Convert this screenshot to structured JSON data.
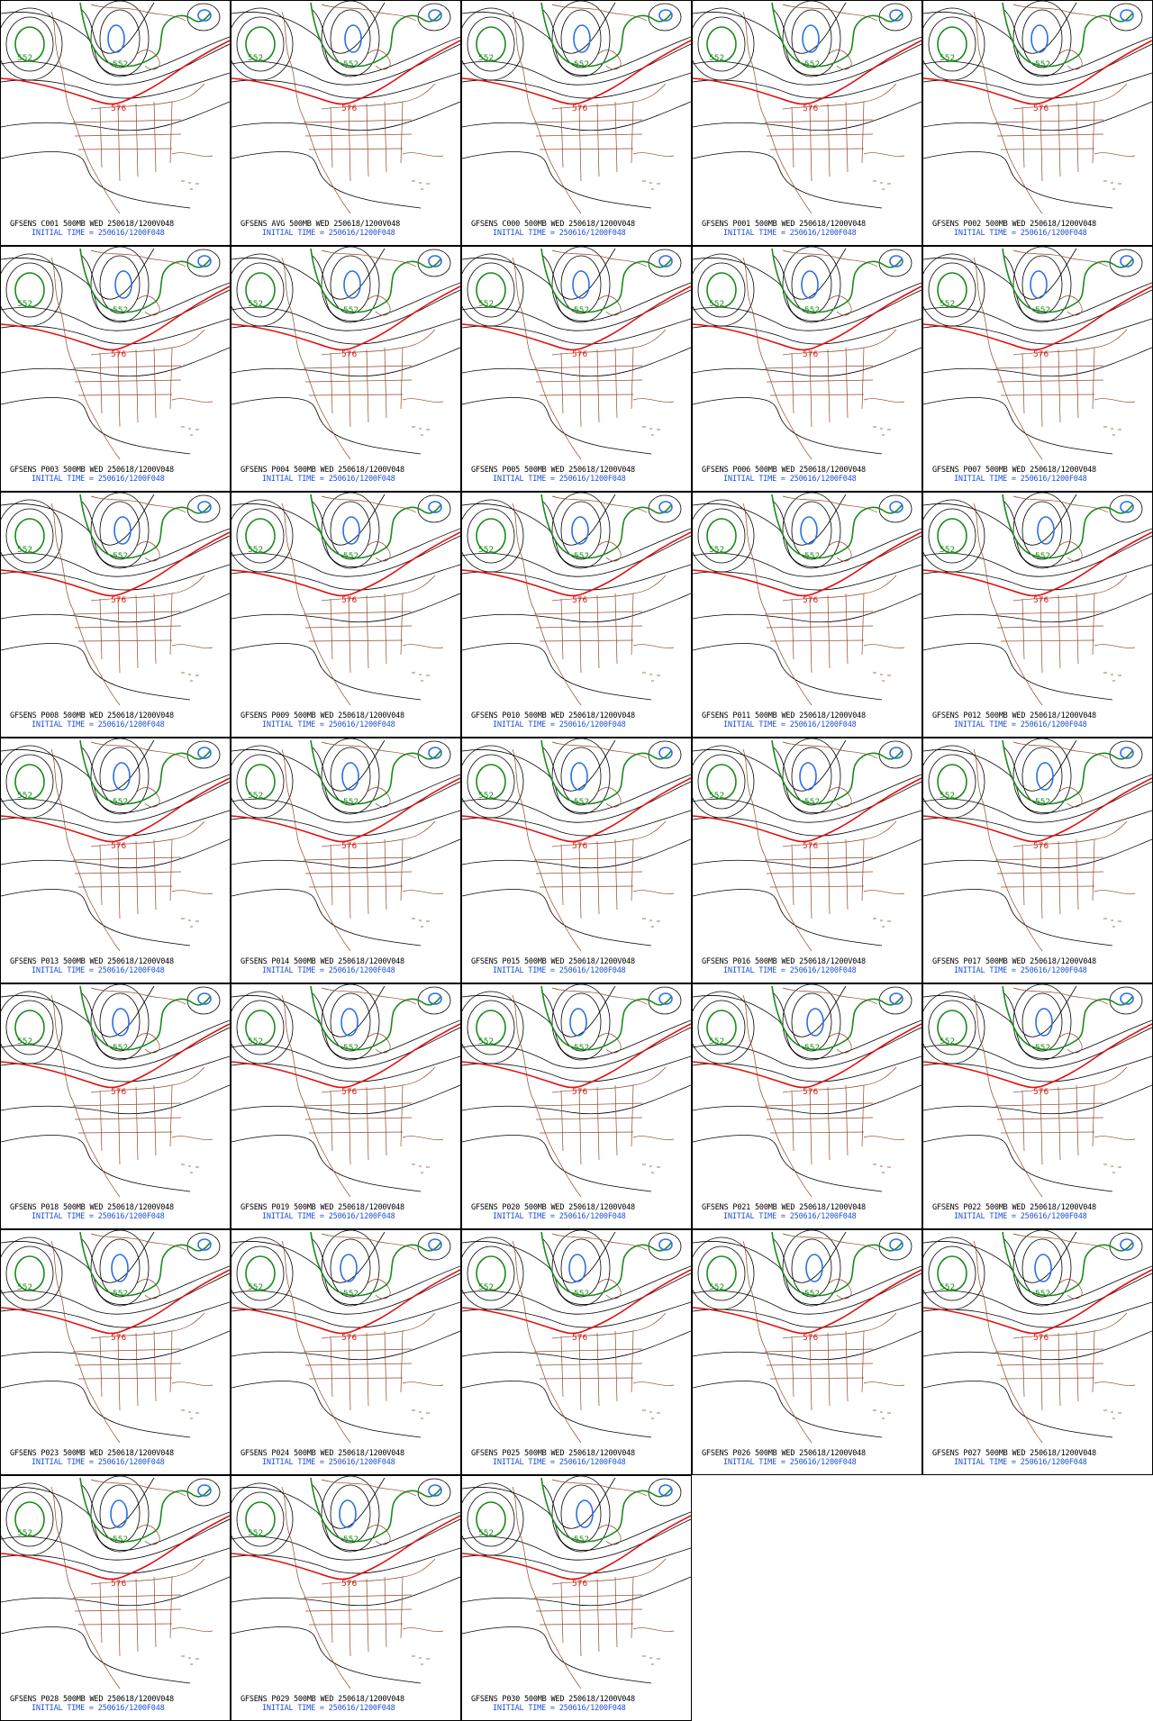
{
  "map_meta": {
    "level": "500MB",
    "valid_day": "WED",
    "valid_time": "250618/1200V048",
    "initial_time_label": "INITIAL TIME = 250616/1200F048",
    "contour_labels": {
      "green": "552",
      "red": "576"
    },
    "colors": {
      "coast": "#8b4a2b",
      "contour": "#000000",
      "green": "#1a8a1a",
      "red": "#e01010",
      "blue": "#2a6ee8",
      "caption_blue": "#1f4fd6"
    }
  },
  "panels": [
    {
      "title": "GFSENS C001 500MB WED 250618/1200V048",
      "init": "INITIAL TIME = 250616/1200F048"
    },
    {
      "title": "GFSENS AVG 500MB WED 250618/1200V048",
      "init": "INITIAL TIME = 250616/1200F048"
    },
    {
      "title": "GFSENS C000 500MB WED 250618/1200V048",
      "init": "INITIAL TIME = 250616/1200F048"
    },
    {
      "title": "GFSENS P001 500MB WED 250618/1200V048",
      "init": "INITIAL TIME = 250616/1200F048"
    },
    {
      "title": "GFSENS P002 500MB WED 250618/1200V048",
      "init": "INITIAL TIME = 250616/1200F048"
    },
    {
      "title": "GFSENS P003 500MB WED 250618/1200V048",
      "init": "INITIAL TIME = 250616/1200F048"
    },
    {
      "title": "GFSENS P004 500MB WED 250618/1200V048",
      "init": "INITIAL TIME = 250616/1200F048"
    },
    {
      "title": "GFSENS P005 500MB WED 250618/1200V048",
      "init": "INITIAL TIME = 250616/1200F048"
    },
    {
      "title": "GFSENS P006 500MB WED 250618/1200V048",
      "init": "INITIAL TIME = 250616/1200F048"
    },
    {
      "title": "GFSENS P007 500MB WED 250618/1200V048",
      "init": "INITIAL TIME = 250616/1200F048"
    },
    {
      "title": "GFSENS P008 500MB WED 250618/1200V048",
      "init": "INITIAL TIME = 250616/1200F048"
    },
    {
      "title": "GFSENS P009 500MB WED 250618/1200V048",
      "init": "INITIAL TIME = 250616/1200F048"
    },
    {
      "title": "GFSENS P010 500MB WED 250618/1200V048",
      "init": "INITIAL TIME = 250616/1200F048"
    },
    {
      "title": "GFSENS P011 500MB WED 250618/1200V048",
      "init": "INITIAL TIME = 250616/1200F048"
    },
    {
      "title": "GFSENS P012 500MB WED 250618/1200V048",
      "init": "INITIAL TIME = 250616/1200F048"
    },
    {
      "title": "GFSENS P013 500MB WED 250618/1200V048",
      "init": "INITIAL TIME = 250616/1200F048"
    },
    {
      "title": "GFSENS P014 500MB WED 250618/1200V048",
      "init": "INITIAL TIME = 250616/1200F048"
    },
    {
      "title": "GFSENS P015 500MB WED 250618/1200V048",
      "init": "INITIAL TIME = 250616/1200F048"
    },
    {
      "title": "GFSENS P016 500MB WED 250618/1200V048",
      "init": "INITIAL TIME = 250616/1200F048"
    },
    {
      "title": "GFSENS P017 500MB WED 250618/1200V048",
      "init": "INITIAL TIME = 250616/1200F048"
    },
    {
      "title": "GFSENS P018 500MB WED 250618/1200V048",
      "init": "INITIAL TIME = 250616/1200F048"
    },
    {
      "title": "GFSENS P019 500MB WED 250618/1200V048",
      "init": "INITIAL TIME = 250616/1200F048"
    },
    {
      "title": "GFSENS P020 500MB WED 250618/1200V048",
      "init": "INITIAL TIME = 250616/1200F048"
    },
    {
      "title": "GFSENS P021 500MB WED 250618/1200V048",
      "init": "INITIAL TIME = 250616/1200F048"
    },
    {
      "title": "GFSENS P022 500MB WED 250618/1200V048",
      "init": "INITIAL TIME = 250616/1200F048"
    },
    {
      "title": "GFSENS P023 500MB WED 250618/1200V048",
      "init": "INITIAL TIME = 250616/1200F048"
    },
    {
      "title": "GFSENS P024 500MB WED 250618/1200V048",
      "init": "INITIAL TIME = 250616/1200F048"
    },
    {
      "title": "GFSENS P025 500MB WED 250618/1200V048",
      "init": "INITIAL TIME = 250616/1200F048"
    },
    {
      "title": "GFSENS P026 500MB WED 250618/1200V048",
      "init": "INITIAL TIME = 250616/1200F048"
    },
    {
      "title": "GFSENS P027 500MB WED 250618/1200V048",
      "init": "INITIAL TIME = 250616/1200F048"
    },
    {
      "title": "GFSENS P028 500MB WED 250618/1200V048",
      "init": "INITIAL TIME = 250616/1200F048"
    },
    {
      "title": "GFSENS P029 500MB WED 250618/1200V048",
      "init": "INITIAL TIME = 250616/1200F048"
    },
    {
      "title": "GFSENS P030 500MB WED 250618/1200V048",
      "init": "INITIAL TIME = 250616/1200F048"
    }
  ]
}
